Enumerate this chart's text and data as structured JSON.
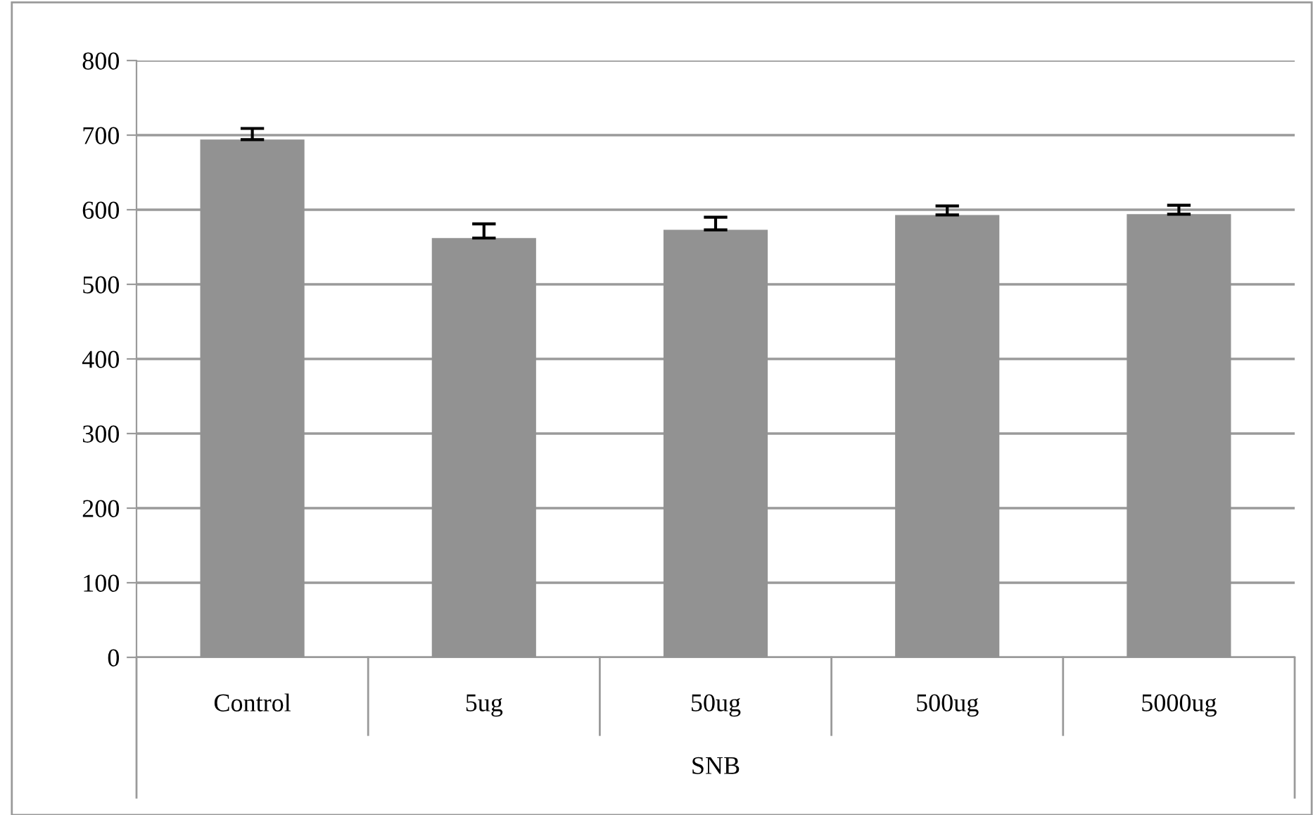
{
  "chart_data": {
    "type": "bar",
    "xlabel": "SNB",
    "categories": [
      "Control",
      "5ug",
      "50ug",
      "500ug",
      "5000ug"
    ],
    "values": [
      694,
      562,
      573,
      593,
      594
    ],
    "errors": [
      [
        694,
        709
      ],
      [
        562,
        581
      ],
      [
        573,
        590
      ],
      [
        593,
        605
      ],
      [
        594,
        606
      ]
    ],
    "color": "#929292",
    "ylim": [
      0,
      800
    ],
    "yticks": [
      0,
      100,
      200,
      300,
      400,
      500,
      600,
      700,
      800
    ],
    "grid": "y",
    "legend": false
  }
}
